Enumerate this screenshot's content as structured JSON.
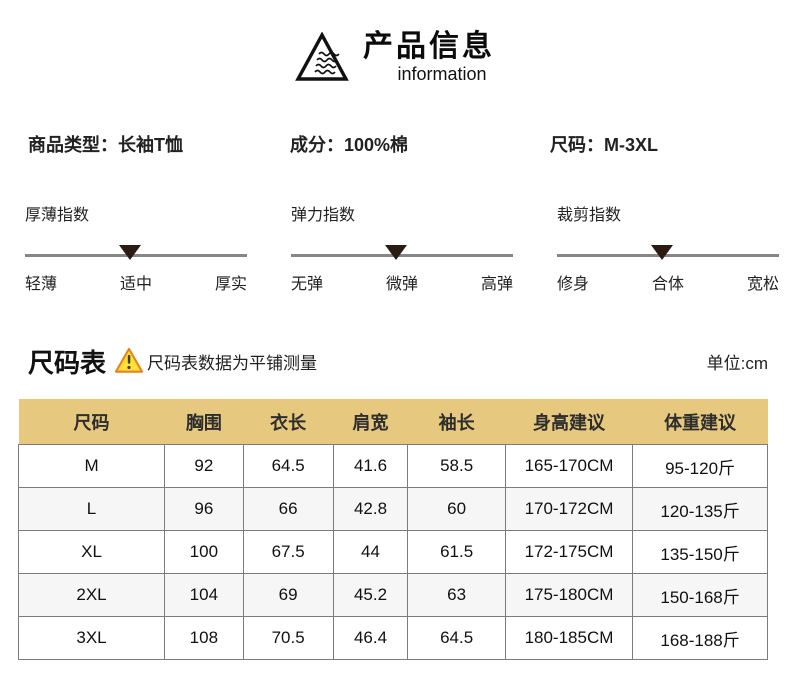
{
  "header": {
    "title": "产品信息",
    "subtitle": "information"
  },
  "product_info": {
    "items": [
      {
        "text": "商品类型：长袖T恤"
      },
      {
        "text": "成分：100%棉"
      },
      {
        "text": "尺码：M-3XL"
      }
    ]
  },
  "indices": [
    {
      "title": "厚薄指数",
      "options": [
        "轻薄",
        "适中",
        "厚实"
      ],
      "selected": "适中"
    },
    {
      "title": "弹力指数",
      "options": [
        "无弹",
        "微弹",
        "高弹"
      ],
      "selected": "微弹"
    },
    {
      "title": "裁剪指数",
      "options": [
        "修身",
        "合体",
        "宽松"
      ],
      "selected": "合体"
    }
  ],
  "size_chart": {
    "title": "尺码表",
    "note": "尺码表数据为平铺测量",
    "unit": "单位:cm",
    "table": {
      "columns": [
        "尺码",
        "胸围",
        "衣长",
        "肩宽",
        "袖长",
        "身高建议",
        "体重建议"
      ],
      "rows": [
        [
          "M",
          "92",
          "64.5",
          "41.6",
          "58.5",
          "165-170CM",
          "95-120斤"
        ],
        [
          "L",
          "96",
          "66",
          "42.8",
          "60",
          "170-172CM",
          "120-135斤"
        ],
        [
          "XL",
          "100",
          "67.5",
          "44",
          "61.5",
          "172-175CM",
          "135-150斤"
        ],
        [
          "2XL",
          "104",
          "69",
          "45.2",
          "63",
          "175-180CM",
          "150-168斤"
        ],
        [
          "3XL",
          "108",
          "70.5",
          "46.4",
          "64.5",
          "180-185CM",
          "168-188斤"
        ]
      ]
    }
  },
  "colors": {
    "table_header_bg": "#e6c97e",
    "row_alt_bg": "#f6f6f6",
    "table_border": "#7b7b7b",
    "scale_line": "#868686",
    "marker": "#2a1c12",
    "warning_fill": "#ffe13a",
    "warning_border": "#e7811e"
  },
  "icons": {
    "brand": "mountain-waves-icon",
    "warning": "warning-triangle-icon",
    "marker": "triangle-down-marker-icon"
  }
}
